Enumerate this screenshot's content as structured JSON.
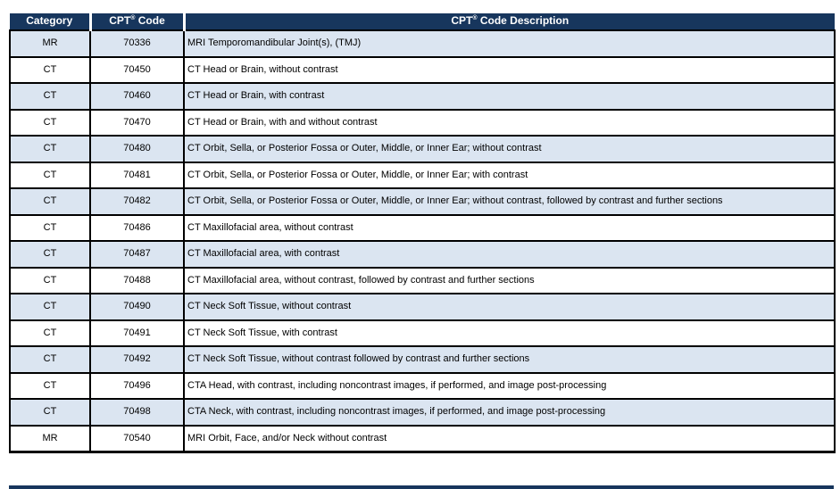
{
  "colors": {
    "header_bg": "#17365D",
    "header_text": "#FFFFFF",
    "row_bg": "#FFFFFF",
    "row_alt_bg": "#DBE5F1",
    "border": "#000000",
    "text": "#000000"
  },
  "table": {
    "headers": [
      {
        "pre": "Category",
        "sup": "",
        "post": ""
      },
      {
        "pre": "CPT",
        "sup": "®",
        "post": " Code"
      },
      {
        "pre": "CPT",
        "sup": "®",
        "post": " Code Description"
      }
    ],
    "rows": [
      {
        "category": "MR",
        "code": "70336",
        "description": "MRI Temporomandibular Joint(s), (TMJ)"
      },
      {
        "category": "CT",
        "code": "70450",
        "description": "CT Head or Brain, without contrast"
      },
      {
        "category": "CT",
        "code": "70460",
        "description": "CT Head or Brain, with contrast"
      },
      {
        "category": "CT",
        "code": "70470",
        "description": "CT Head or Brain, with and without contrast"
      },
      {
        "category": "CT",
        "code": "70480",
        "description": "CT Orbit, Sella, or Posterior Fossa or Outer, Middle, or Inner Ear; without contrast"
      },
      {
        "category": "CT",
        "code": "70481",
        "description": "CT Orbit, Sella, or Posterior Fossa or Outer, Middle, or Inner Ear; with contrast"
      },
      {
        "category": "CT",
        "code": "70482",
        "description": "CT Orbit, Sella, or Posterior Fossa or Outer, Middle, or Inner Ear; without contrast, followed by contrast and further sections"
      },
      {
        "category": "CT",
        "code": "70486",
        "description": "CT Maxillofacial area, without contrast"
      },
      {
        "category": "CT",
        "code": "70487",
        "description": "CT Maxillofacial area, with contrast"
      },
      {
        "category": "CT",
        "code": "70488",
        "description": "CT Maxillofacial area, without contrast, followed by contrast and further sections"
      },
      {
        "category": "CT",
        "code": "70490",
        "description": "CT Neck Soft Tissue, without contrast"
      },
      {
        "category": "CT",
        "code": "70491",
        "description": "CT Neck Soft Tissue, with contrast"
      },
      {
        "category": "CT",
        "code": "70492",
        "description": "CT Neck Soft Tissue, without contrast followed by contrast and further sections"
      },
      {
        "category": "CT",
        "code": "70496",
        "description": "CTA Head, with contrast, including noncontrast images, if performed, and image post-processing"
      },
      {
        "category": "CT",
        "code": "70498",
        "description": "CTA Neck, with contrast, including noncontrast images, if performed, and image post-processing"
      },
      {
        "category": "MR",
        "code": "70540",
        "description": "MRI Orbit, Face, and/or Neck without contrast"
      }
    ]
  }
}
